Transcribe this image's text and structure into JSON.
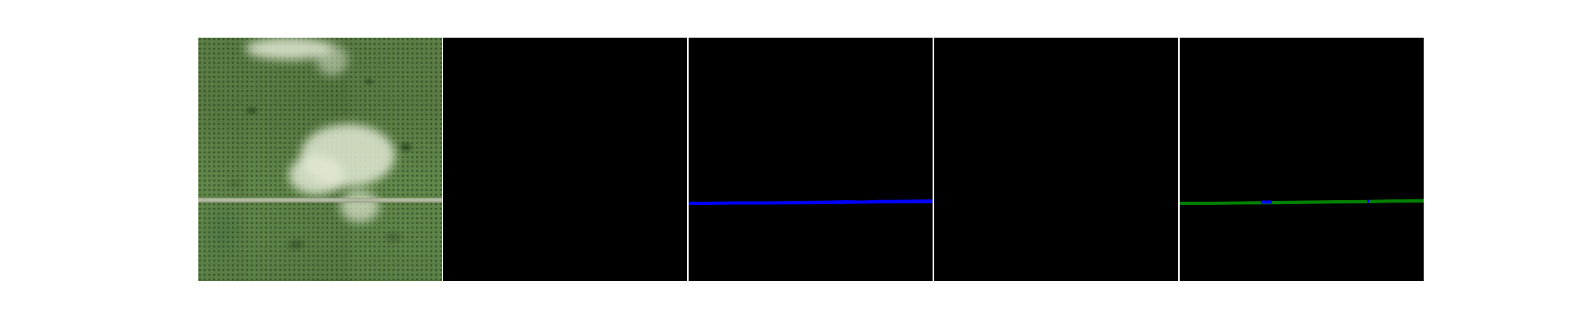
{
  "panels": [
    {
      "id": "panel-1",
      "kind": "satellite-image"
    },
    {
      "id": "panel-2",
      "kind": "empty-mask"
    },
    {
      "id": "panel-3",
      "kind": "road-mask",
      "line_color": "#0000ff"
    },
    {
      "id": "panel-4",
      "kind": "empty-mask"
    },
    {
      "id": "panel-5",
      "kind": "road-overlay",
      "line_color": "#008000",
      "accent_color": "#0000ff"
    }
  ],
  "colors": {
    "background": "#ffffff",
    "mask_background": "#000000",
    "road_blue": "#0000ff",
    "road_green": "#008000"
  }
}
